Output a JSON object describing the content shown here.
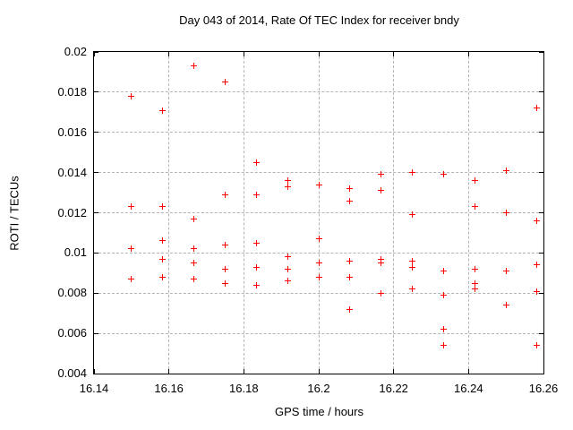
{
  "chart_data": {
    "type": "scatter",
    "title": "Day 043 of 2014, Rate Of TEC Index for receiver bndy",
    "xlabel": "GPS time / hours",
    "ylabel": "ROTI / TECUs",
    "xlim": [
      16.14,
      16.26
    ],
    "ylim": [
      0.004,
      0.02
    ],
    "xticks": [
      16.14,
      16.16,
      16.18,
      16.2,
      16.22,
      16.24,
      16.26
    ],
    "xtick_labels": [
      "16.14",
      "16.16",
      "16.18",
      "16.2",
      "16.22",
      "16.24",
      "16.26"
    ],
    "yticks": [
      0.004,
      0.006,
      0.008,
      0.01,
      0.012,
      0.014,
      0.016,
      0.018,
      0.02
    ],
    "ytick_labels": [
      "0.004",
      "0.006",
      "0.008",
      "0.01",
      "0.012",
      "0.014",
      "0.016",
      "0.018",
      "0.02"
    ],
    "grid": true,
    "legend": "none",
    "marker": "plus",
    "marker_color": "#ff0000",
    "points": [
      [
        16.15,
        0.0178
      ],
      [
        16.15,
        0.0123
      ],
      [
        16.15,
        0.0102
      ],
      [
        16.15,
        0.0087
      ],
      [
        16.1583,
        0.0171
      ],
      [
        16.1583,
        0.0123
      ],
      [
        16.1583,
        0.0106
      ],
      [
        16.1583,
        0.0097
      ],
      [
        16.1583,
        0.0088
      ],
      [
        16.1667,
        0.0193
      ],
      [
        16.1667,
        0.0117
      ],
      [
        16.1667,
        0.0102
      ],
      [
        16.1667,
        0.0095
      ],
      [
        16.1667,
        0.0087
      ],
      [
        16.175,
        0.0185
      ],
      [
        16.175,
        0.0129
      ],
      [
        16.175,
        0.0104
      ],
      [
        16.175,
        0.0092
      ],
      [
        16.175,
        0.0085
      ],
      [
        16.1833,
        0.0145
      ],
      [
        16.1833,
        0.0129
      ],
      [
        16.1833,
        0.0105
      ],
      [
        16.1833,
        0.0093
      ],
      [
        16.1833,
        0.0084
      ],
      [
        16.1917,
        0.0136
      ],
      [
        16.1917,
        0.0133
      ],
      [
        16.1917,
        0.0098
      ],
      [
        16.1917,
        0.0092
      ],
      [
        16.1917,
        0.0086
      ],
      [
        16.2,
        0.0134
      ],
      [
        16.2,
        0.0107
      ],
      [
        16.2,
        0.0095
      ],
      [
        16.2,
        0.0088
      ],
      [
        16.2083,
        0.0132
      ],
      [
        16.2083,
        0.0126
      ],
      [
        16.2083,
        0.0096
      ],
      [
        16.2083,
        0.0088
      ],
      [
        16.2083,
        0.0072
      ],
      [
        16.2167,
        0.0139
      ],
      [
        16.2167,
        0.0131
      ],
      [
        16.2167,
        0.0097
      ],
      [
        16.2167,
        0.0095
      ],
      [
        16.2167,
        0.008
      ],
      [
        16.225,
        0.014
      ],
      [
        16.225,
        0.0119
      ],
      [
        16.225,
        0.0096
      ],
      [
        16.225,
        0.0093
      ],
      [
        16.225,
        0.0082
      ],
      [
        16.2333,
        0.0139
      ],
      [
        16.2333,
        0.0091
      ],
      [
        16.2333,
        0.0079
      ],
      [
        16.2333,
        0.0062
      ],
      [
        16.2333,
        0.0054
      ],
      [
        16.2417,
        0.0136
      ],
      [
        16.2417,
        0.0123
      ],
      [
        16.2417,
        0.0092
      ],
      [
        16.2417,
        0.0085
      ],
      [
        16.2417,
        0.0082
      ],
      [
        16.25,
        0.0141
      ],
      [
        16.25,
        0.012
      ],
      [
        16.25,
        0.0091
      ],
      [
        16.25,
        0.0074
      ],
      [
        16.2583,
        0.0172
      ],
      [
        16.2583,
        0.0116
      ],
      [
        16.2583,
        0.0094
      ],
      [
        16.2583,
        0.0081
      ],
      [
        16.2583,
        0.0054
      ]
    ]
  }
}
